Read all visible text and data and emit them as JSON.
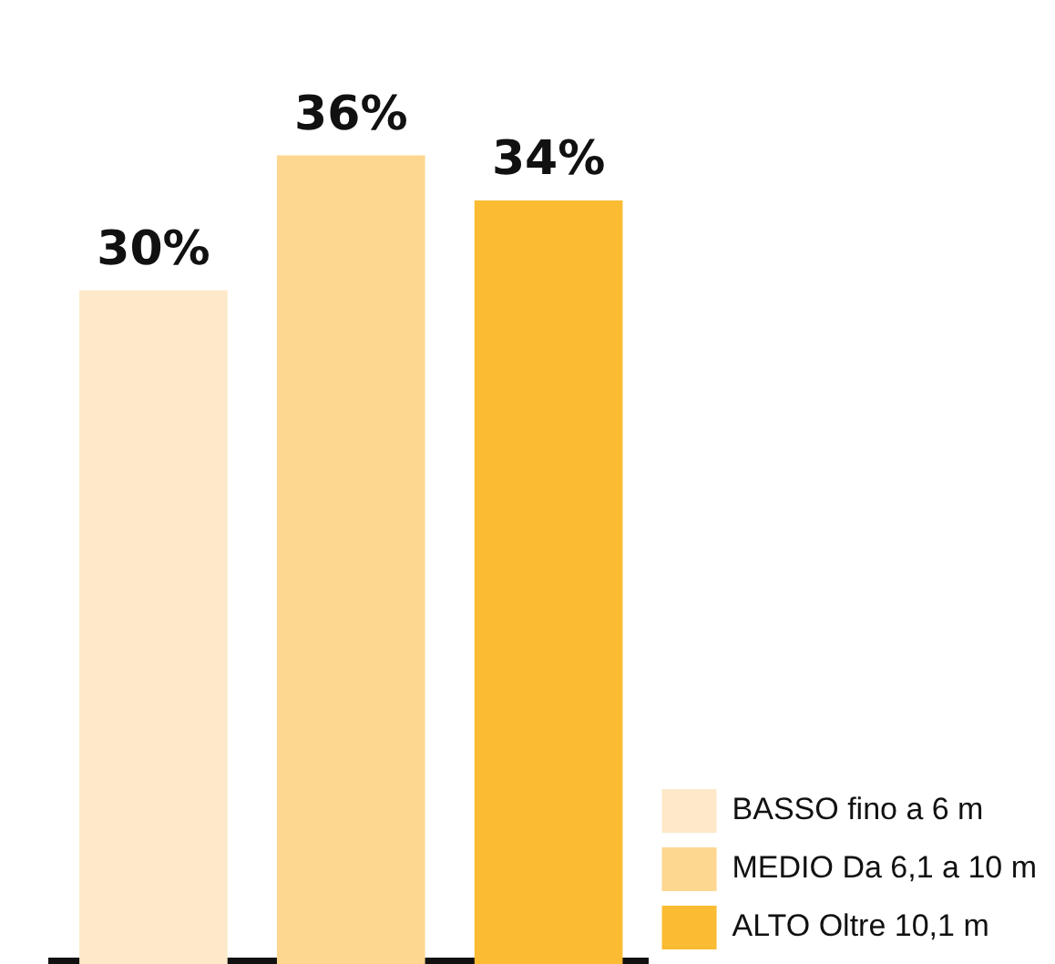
{
  "chart_data": {
    "type": "bar",
    "categories": [
      null,
      null,
      null
    ],
    "stacked": true,
    "series": [
      {
        "name": "BASSO fino a 6 m",
        "color": "#fde9c9",
        "values": [
          30,
          null,
          null
        ],
        "value_labels": [
          "30%",
          null,
          null
        ]
      },
      {
        "name": "MEDIO Da 6,1 a 10 m",
        "color": "#fdd690",
        "values": [
          null,
          36,
          null
        ],
        "value_labels": [
          null,
          "36%",
          null
        ]
      },
      {
        "name": "ALTO Oltre 10,1 m",
        "color": "#fbbb33",
        "values": [
          null,
          null,
          34
        ],
        "value_labels": [
          null,
          null,
          "34%"
        ]
      }
    ],
    "tick_labels": false,
    "grid": false,
    "legend": "bottom right"
  }
}
